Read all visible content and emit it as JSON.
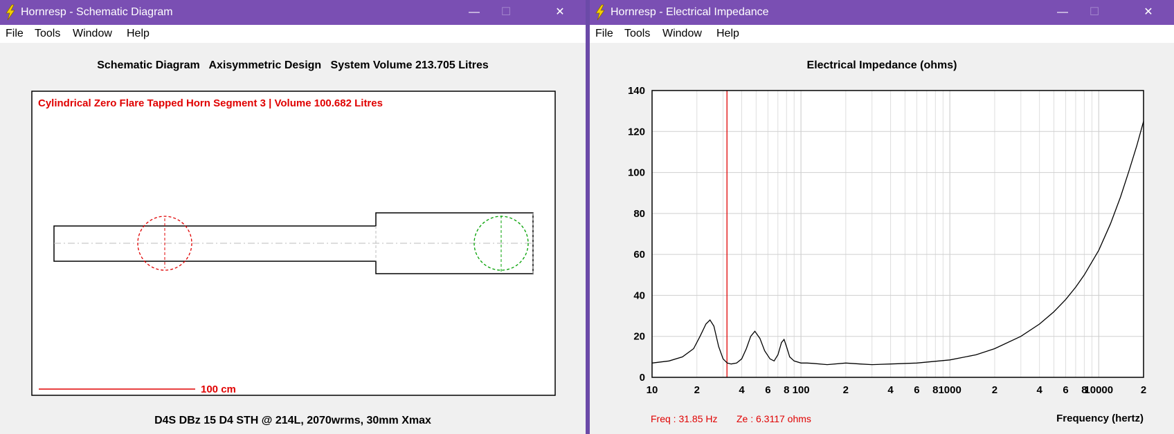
{
  "window1": {
    "title": "Hornresp - Schematic Diagram",
    "menu": [
      "File",
      "Tools",
      "Window",
      "Help"
    ],
    "heading": "Schematic Diagram   Axisymmetric Design   System Volume 213.705 Litres",
    "segment_label": "Cylindrical Zero Flare Tapped Horn Segment 3 | Volume 100.682 Litres",
    "scale_label": "100 cm",
    "footer": "D4S DBz 15 D4 STH @ 214L, 2070wrms, 30mm Xmax"
  },
  "window2": {
    "title": "Hornresp - Electrical Impedance",
    "menu": [
      "File",
      "Tools",
      "Window",
      "Help"
    ],
    "readout_freq": "Freq : 31.85 Hz",
    "readout_ze": "Ze : 6.3117 ohms"
  },
  "chart_data": {
    "type": "line",
    "title": "Electrical Impedance (ohms)",
    "xlabel": "Frequency (hertz)",
    "ylabel": "",
    "x_scale": "log",
    "xlim": [
      10,
      20000
    ],
    "ylim": [
      0,
      140
    ],
    "y_ticks": [
      0,
      20,
      40,
      60,
      80,
      100,
      120,
      140
    ],
    "x_tick_labels": [
      {
        "x": 10,
        "label": "10"
      },
      {
        "x": 20,
        "label": "2"
      },
      {
        "x": 40,
        "label": "4"
      },
      {
        "x": 60,
        "label": "6"
      },
      {
        "x": 80,
        "label": "8"
      },
      {
        "x": 100,
        "label": "100"
      },
      {
        "x": 200,
        "label": "2"
      },
      {
        "x": 400,
        "label": "4"
      },
      {
        "x": 600,
        "label": "6"
      },
      {
        "x": 800,
        "label": "8"
      },
      {
        "x": 1000,
        "label": "1000"
      },
      {
        "x": 2000,
        "label": "2"
      },
      {
        "x": 4000,
        "label": "4"
      },
      {
        "x": 6000,
        "label": "6"
      },
      {
        "x": 8000,
        "label": "8"
      },
      {
        "x": 10000,
        "label": "10000"
      },
      {
        "x": 20000,
        "label": "2"
      }
    ],
    "grid": true,
    "cursor_x": 31.85,
    "series": [
      {
        "color": "#000000",
        "x": [
          10,
          13,
          16,
          19,
          21,
          23,
          24.5,
          26,
          28,
          30,
          32,
          34,
          37,
          40,
          43,
          46,
          49,
          53,
          57,
          62,
          66,
          70,
          74,
          77,
          80,
          84,
          90,
          100,
          110,
          120,
          150,
          200,
          250,
          300,
          400,
          600,
          1000,
          1500,
          2000,
          3000,
          4000,
          5000,
          6000,
          7000,
          8000,
          10000,
          12000,
          14000,
          16000,
          18000,
          20000
        ],
        "y": [
          7,
          8,
          10,
          14,
          20,
          26,
          28,
          25,
          15,
          9,
          7,
          6.5,
          7,
          9,
          14,
          20,
          22.5,
          19,
          13,
          9,
          8,
          11,
          17,
          18.5,
          15,
          10,
          8,
          7,
          7,
          6.8,
          6.2,
          7,
          6.5,
          6.2,
          6.5,
          7,
          8.5,
          11,
          14,
          20,
          26,
          32,
          38,
          44,
          50,
          62,
          75,
          88,
          101,
          113,
          125
        ]
      }
    ]
  }
}
